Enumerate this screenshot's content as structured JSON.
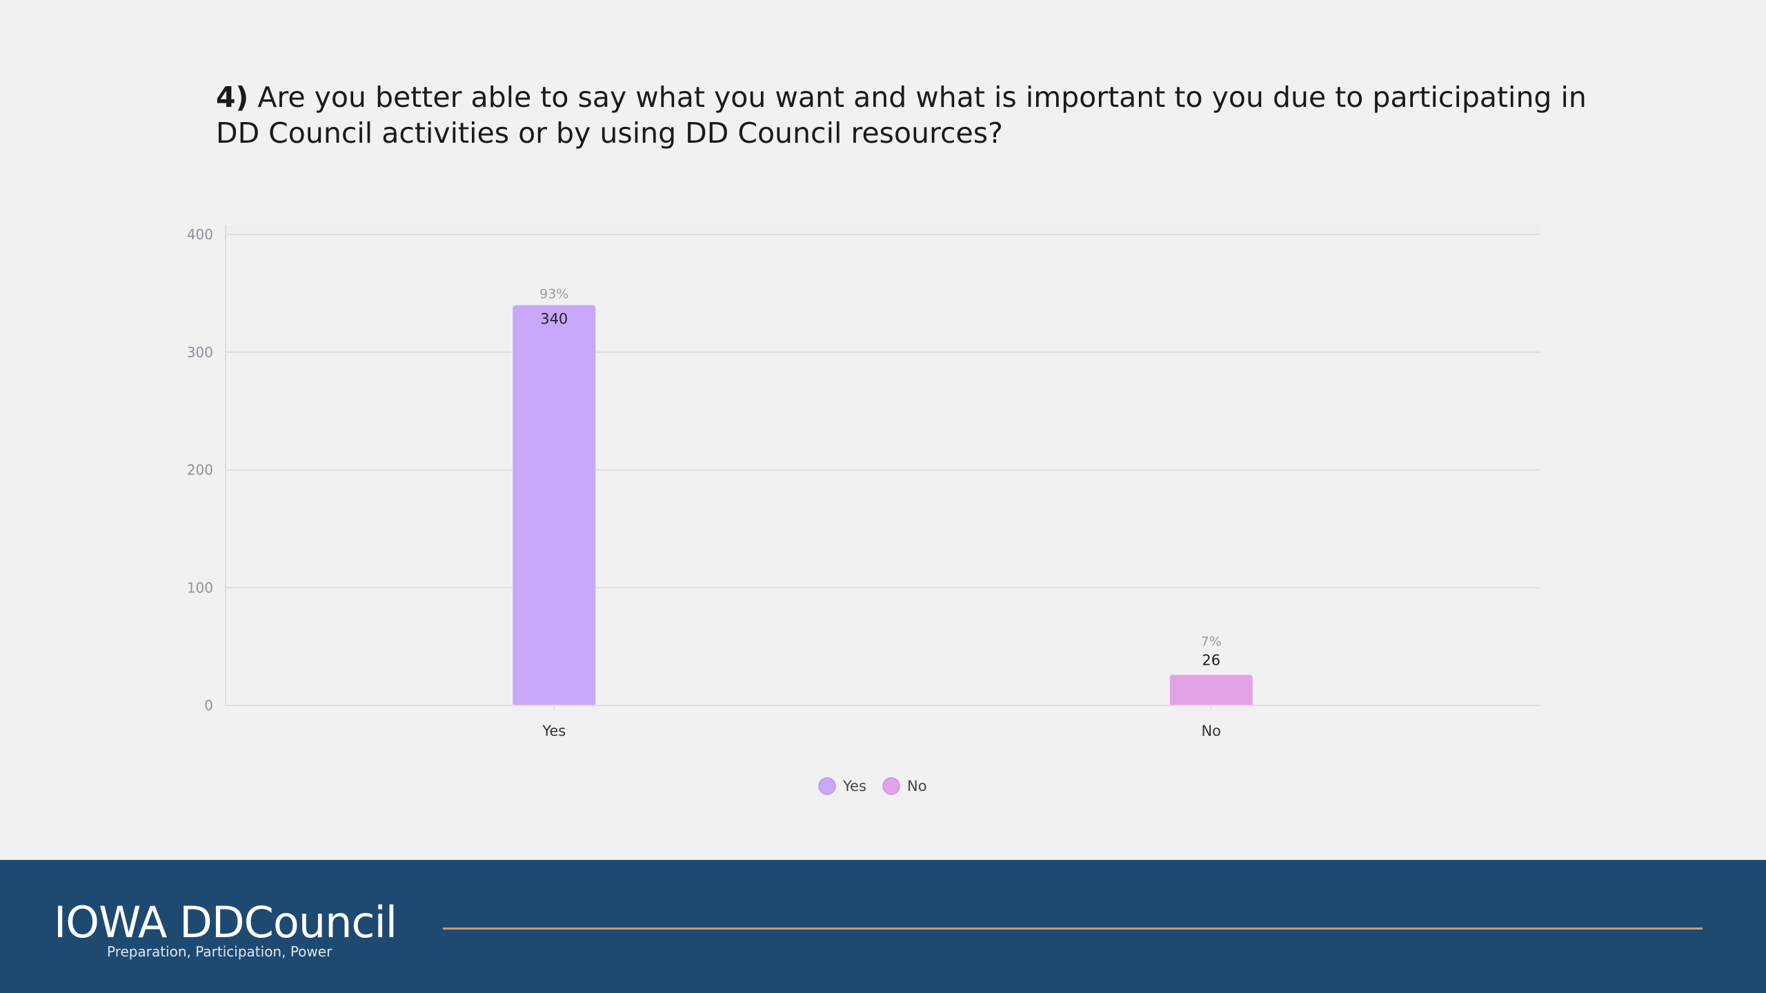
{
  "question": {
    "number": "4)",
    "text": "Are you better able to say what you want and what is important to you due to participating in DD Council activities or by using DD Council resources?"
  },
  "chart_data": {
    "type": "bar",
    "title": "",
    "xlabel": "",
    "ylabel": "",
    "ylim": [
      0,
      400
    ],
    "yticks": [
      0,
      100,
      200,
      300,
      400
    ],
    "grid": true,
    "legend_position": "bottom-center",
    "categories": [
      "Yes",
      "No"
    ],
    "values": [
      340,
      26
    ],
    "percent_labels": [
      "93%",
      "7%"
    ],
    "colors": [
      "#c8a8fb",
      "#e4a2e6"
    ],
    "legend": [
      "Yes",
      "No"
    ]
  },
  "footer": {
    "org_name": "IOWA DDCouncil",
    "tagline": "Preparation, Participation, Power"
  }
}
